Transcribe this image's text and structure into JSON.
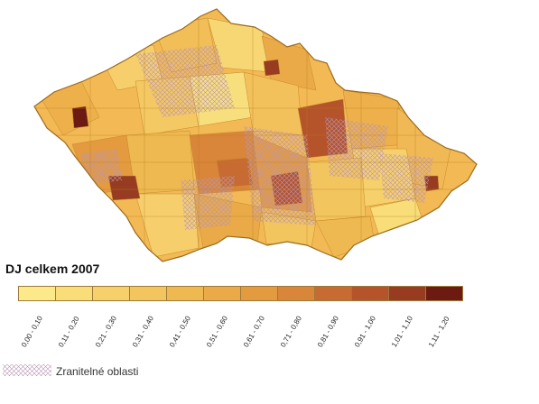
{
  "map": {
    "region": "Czech Republic",
    "regions_count_shown": "many small districts",
    "dominant_color": "#F2B955",
    "border_color": "#B8860B",
    "hotspot_color": "#9B3B15",
    "hatch_color": "#C9A6C8"
  },
  "legend": {
    "title": "DJ celkem 2007",
    "classes": [
      {
        "label": "0,00 - 0,10",
        "color": "#FBE98A"
      },
      {
        "label": "0,11 - 0,20",
        "color": "#F9DD79"
      },
      {
        "label": "0,21 - 0,30",
        "color": "#F6D06A"
      },
      {
        "label": "0,31 - 0,40",
        "color": "#F3C55E"
      },
      {
        "label": "0,41 - 0,50",
        "color": "#EFB951"
      },
      {
        "label": "0,51 - 0,60",
        "color": "#EAAA47"
      },
      {
        "label": "0,61 - 0,70",
        "color": "#E49A3F"
      },
      {
        "label": "0,71 - 0,80",
        "color": "#D9853A"
      },
      {
        "label": "0,81 - 0,90",
        "color": "#C86B32"
      },
      {
        "label": "0,91 - 1,00",
        "color": "#B5532B"
      },
      {
        "label": "1,01 - 1,10",
        "color": "#973C21"
      },
      {
        "label": "1,11 - 1,20",
        "color": "#6C1A12"
      }
    ],
    "hatch_label": "Zranitelné oblasti"
  }
}
